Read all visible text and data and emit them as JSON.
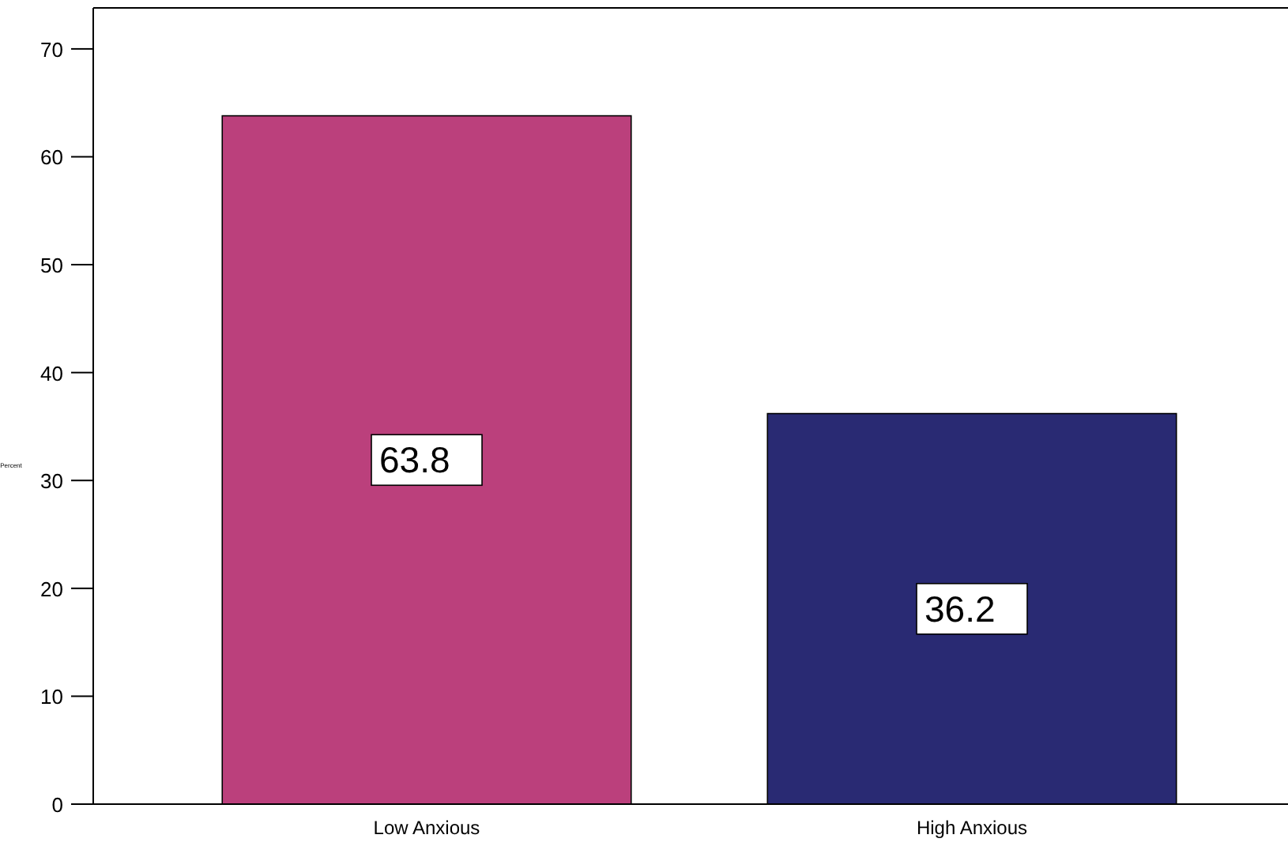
{
  "chart_data": {
    "type": "bar",
    "ylabel": "Percent",
    "categories": [
      "Low Anxious",
      "High Anxious"
    ],
    "colors": [
      "#bb407c",
      "#292a73"
    ],
    "values": [
      63.8,
      36.2
    ],
    "data_labels": true,
    "ylim": [
      0,
      73.8
    ],
    "yticks": [
      0,
      10,
      20,
      30,
      40,
      50,
      60,
      70
    ],
    "grid": false
  }
}
